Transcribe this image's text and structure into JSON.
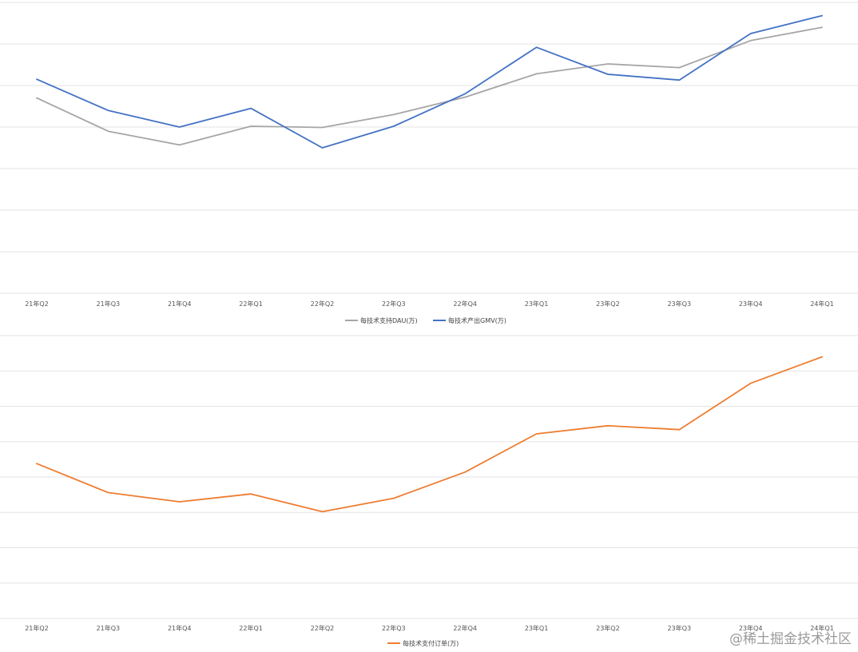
{
  "chart_data": [
    {
      "type": "line",
      "categories": [
        "21年Q2",
        "21年Q3",
        "21年Q4",
        "22年Q1",
        "22年Q2",
        "22年Q3",
        "22年Q4",
        "23年Q1",
        "23年Q2",
        "23年Q3",
        "23年Q4",
        "24年Q1"
      ],
      "ylim": [
        0,
        7
      ],
      "grid": true,
      "legend": "bottom",
      "series": [
        {
          "name": "每技术支持DAU(万)",
          "color": "#a6a6a6",
          "values": [
            4.7,
            3.9,
            3.57,
            4.02,
            3.99,
            4.3,
            4.72,
            5.28,
            5.52,
            5.43,
            6.08,
            6.4
          ]
        },
        {
          "name": "每技术产出GMV(万)",
          "color": "#4472c4",
          "values": [
            5.15,
            4.4,
            4.0,
            4.45,
            3.5,
            4.02,
            4.8,
            5.92,
            5.27,
            5.13,
            6.25,
            6.68
          ]
        }
      ]
    },
    {
      "type": "line",
      "categories": [
        "21年Q2",
        "21年Q3",
        "21年Q4",
        "22年Q1",
        "22年Q2",
        "22年Q3",
        "22年Q4",
        "23年Q1",
        "23年Q2",
        "23年Q3",
        "23年Q4",
        "24年Q1"
      ],
      "ylim": [
        0,
        8
      ],
      "grid": true,
      "legend": "bottom",
      "series": [
        {
          "name": "每技术支付订单(万)",
          "color": "#ed7d31",
          "values": [
            4.38,
            3.56,
            3.3,
            3.52,
            3.02,
            3.4,
            4.14,
            5.22,
            5.45,
            5.34,
            6.65,
            7.4
          ]
        }
      ]
    }
  ],
  "watermark": "@稀土掘金技术社区"
}
